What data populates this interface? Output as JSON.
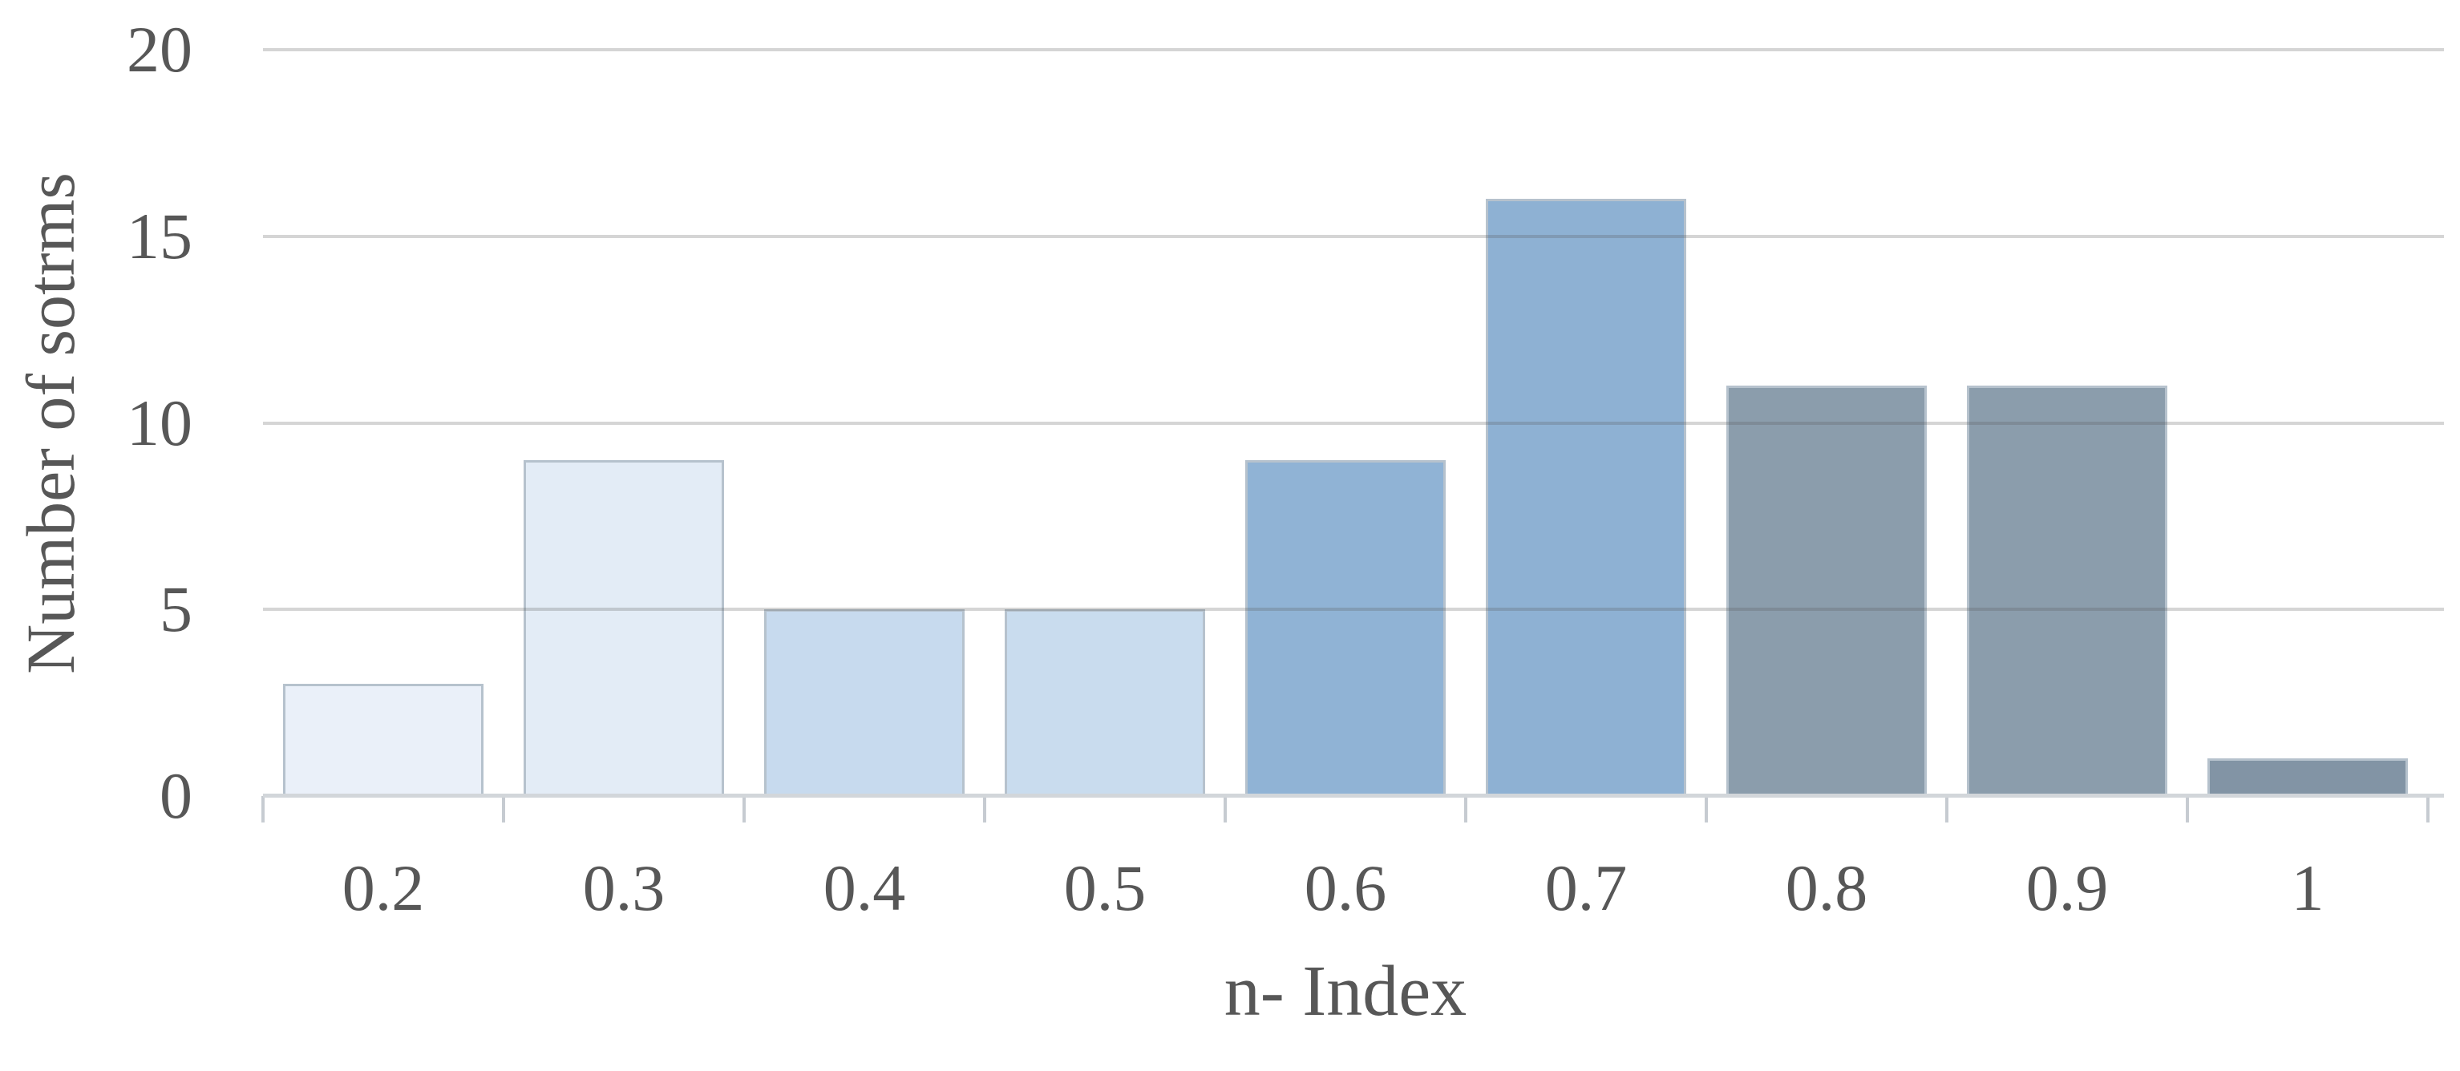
{
  "figure": {
    "background": "#ffffff"
  },
  "chart_data": {
    "type": "bar",
    "title": "",
    "xlabel": "n- Index",
    "ylabel": "Number of sotrms",
    "categories": [
      "0.2",
      "0.3",
      "0.4",
      "0.5",
      "0.6",
      "0.7",
      "0.8",
      "0.9",
      "1"
    ],
    "values": [
      3,
      9,
      5,
      5,
      9,
      16,
      11,
      11,
      1
    ],
    "ylim": [
      0,
      20
    ],
    "yticks": [
      0,
      5,
      10,
      15,
      20
    ],
    "grid": "horizontal",
    "legend": "none",
    "bar_colors": [
      "#eaf0f9",
      "#e3ecf6",
      "#c7daee",
      "#c9dcee",
      "#90b3d5",
      "#8eb1d3",
      "#8b9dac",
      "#8b9dac",
      "#8294a5"
    ],
    "bar_border_color": "#b6c2cd",
    "gridline_color": "rgba(89,89,89,0.25)",
    "axis_line_color": "#d2d6da",
    "tick_color": "#c6cbd1",
    "text_color": "#575757"
  }
}
